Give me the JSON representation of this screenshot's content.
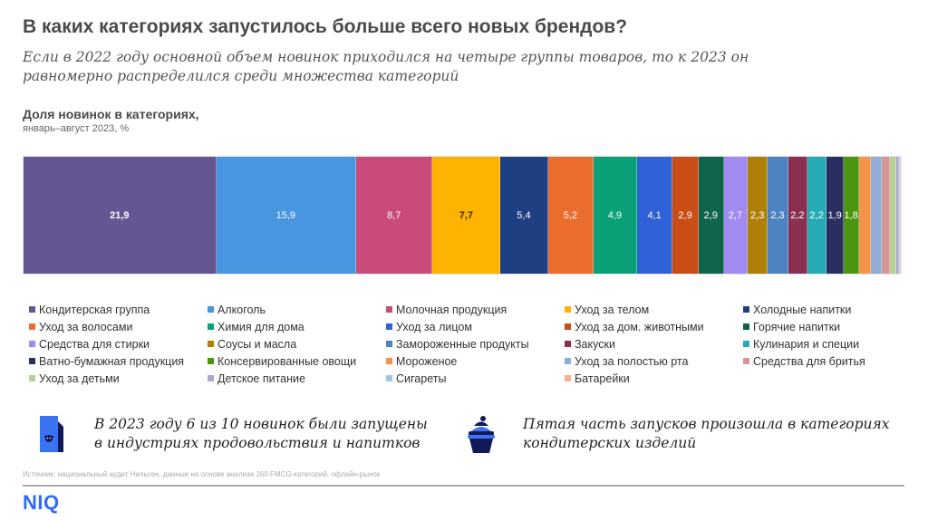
{
  "header": {
    "title": "В каких категориях запустилось больше всего новых брендов?",
    "subtitle": "Если в 2022 году основной объем новинок приходился на четыре группы товаров, то к 2023 он равномерно распределился среди множества категорий"
  },
  "chart_data": {
    "type": "bar",
    "orientation": "horizontal-stacked-100",
    "title": "Доля новинок в категориях,",
    "subtitle": "январь–август 2023, %",
    "xlabel": "",
    "ylabel": "",
    "legend_position": "bottom",
    "grid": false,
    "series": [
      {
        "name": "Кондитерская группа",
        "value": 21.9,
        "label": "21,9",
        "color": "#655593",
        "label_color": "#ffffff",
        "bold": true
      },
      {
        "name": "Алкоголь",
        "value": 15.9,
        "label": "15,9",
        "color": "#4895e0",
        "label_color": "#ffffff",
        "bold": false
      },
      {
        "name": "Молочная продукция",
        "value": 8.7,
        "label": "8,7",
        "color": "#c94b79",
        "label_color": "#ffffff",
        "bold": false
      },
      {
        "name": "Уход за телом",
        "value": 7.7,
        "label": "7,7",
        "color": "#fdb300",
        "label_color": "#3a2a00",
        "bold": true
      },
      {
        "name": "Холодные напитки",
        "value": 5.4,
        "label": "5,4",
        "color": "#1f3f83",
        "label_color": "#ffffff",
        "bold": false
      },
      {
        "name": "Уход за волосами",
        "value": 5.2,
        "label": "5,2",
        "color": "#ec6c2e",
        "label_color": "#ffffff",
        "bold": false
      },
      {
        "name": "Химия для дома",
        "value": 4.9,
        "label": "4,9",
        "color": "#0aa078",
        "label_color": "#ffffff",
        "bold": false
      },
      {
        "name": "Уход за лицом",
        "value": 4.1,
        "label": "4,1",
        "color": "#2e62d6",
        "label_color": "#ffffff",
        "bold": false
      },
      {
        "name": "Уход за дом. животными",
        "value": 2.9,
        "label": "2,9",
        "color": "#c94d14",
        "label_color": "#ffffff",
        "bold": false
      },
      {
        "name": "Горячие напитки",
        "value": 2.9,
        "label": "2,9",
        "color": "#0e654b",
        "label_color": "#ffffff",
        "bold": false
      },
      {
        "name": "Средства для стирки",
        "value": 2.7,
        "label": "2,7",
        "color": "#a18bf2",
        "label_color": "#ffffff",
        "bold": false
      },
      {
        "name": "Соусы и масла",
        "value": 2.3,
        "label": "2,3",
        "color": "#b07f08",
        "label_color": "#ffffff",
        "bold": false
      },
      {
        "name": "Замороженные продукты",
        "value": 2.3,
        "label": "2,3",
        "color": "#4f82c2",
        "label_color": "#ffffff",
        "bold": false
      },
      {
        "name": "Закуски",
        "value": 2.2,
        "label": "2,2",
        "color": "#8a2f4f",
        "label_color": "#ffffff",
        "bold": false
      },
      {
        "name": "Кулинария и специи",
        "value": 2.2,
        "label": "2,2",
        "color": "#26aab3",
        "label_color": "#ffffff",
        "bold": false
      },
      {
        "name": "Ватно-бумажная продукция",
        "value": 1.9,
        "label": "1,9",
        "color": "#2a2f62",
        "label_color": "#ffffff",
        "bold": false
      },
      {
        "name": "Консервированные овощи",
        "value": 1.8,
        "label": "1,8",
        "color": "#4b9511",
        "label_color": "#ffffff",
        "bold": false
      },
      {
        "name": "Мороженое",
        "value": 1.3,
        "label": "",
        "color": "#f6934b",
        "label_color": "#ffffff",
        "bold": false
      },
      {
        "name": "Уход за полостью рта",
        "value": 1.2,
        "label": "",
        "color": "#92acd6",
        "label_color": "#ffffff",
        "bold": false
      },
      {
        "name": "Средства для бритья",
        "value": 1.0,
        "label": "",
        "color": "#d99494",
        "label_color": "#ffffff",
        "bold": false
      },
      {
        "name": "Уход за детьми",
        "value": 0.7,
        "label": "",
        "color": "#b6d196",
        "label_color": "#ffffff",
        "bold": false
      },
      {
        "name": "Детское питание",
        "value": 0.3,
        "label": "",
        "color": "#b0a6cf",
        "label_color": "#ffffff",
        "bold": false
      },
      {
        "name": "Сигареты",
        "value": 0.1,
        "label": "",
        "color": "#9cc9df",
        "label_color": "#ffffff",
        "bold": false
      },
      {
        "name": "Батарейки",
        "value": 0.1,
        "label": "",
        "color": "#f3b296",
        "label_color": "#ffffff",
        "bold": false
      }
    ]
  },
  "callouts": [
    {
      "icon": "milk-carton-icon",
      "text_line1": "В 2023 году 6 из 10 новинок были запущены",
      "text_line2": "в индустриях продовольствия и напитков"
    },
    {
      "icon": "cupcake-icon",
      "text_line1": "Пятая часть запусков произошла в категориях",
      "text_line2": "кондитерских изделий"
    }
  ],
  "footer": {
    "source": "Источник: национальный аудит Нильсен, данные на основе анализа 160 FMCG-категорий, офлайн-рынок",
    "logo": "NIQ"
  },
  "colors": {
    "brand": "#2f6bf0",
    "icon_dark": "#10195a",
    "icon_light": "#3b73f0"
  }
}
